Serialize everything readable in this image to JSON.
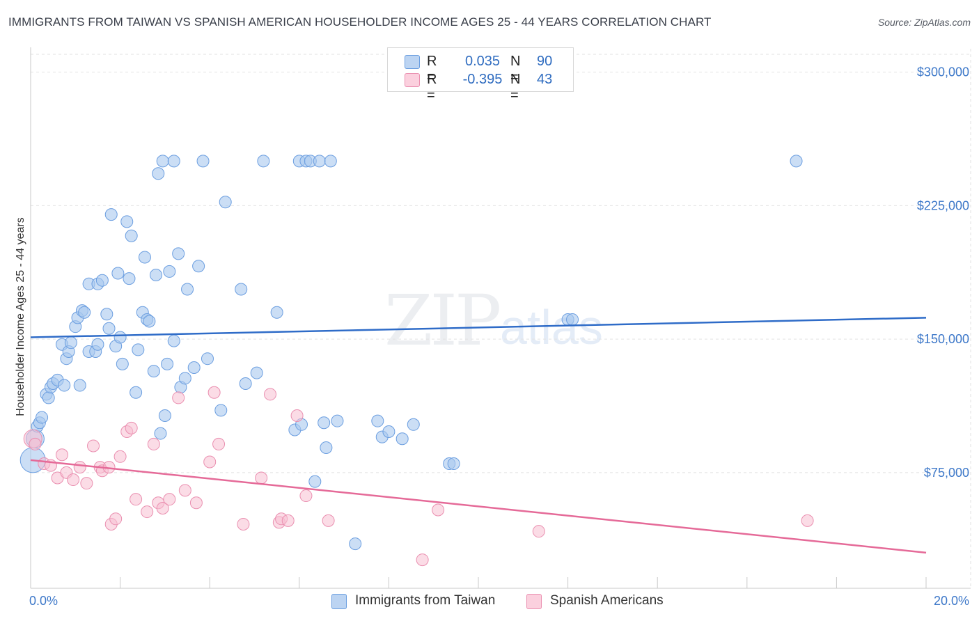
{
  "title": "IMMIGRANTS FROM TAIWAN VS SPANISH AMERICAN HOUSEHOLDER INCOME AGES 25 - 44 YEARS CORRELATION CHART",
  "source": "Source: ZipAtlas.com",
  "watermark": {
    "zip": "ZIP",
    "atlas": "atlas"
  },
  "legend": {
    "rows": [
      {
        "r_label": "R =",
        "r_value": "0.035",
        "n_label": "N =",
        "n_value": "90"
      },
      {
        "r_label": "R =",
        "r_value": "-0.395",
        "n_label": "N =",
        "n_value": "43"
      }
    ]
  },
  "bottom_legend": {
    "taiwan": "Immigrants from Taiwan",
    "spanish": "Spanish Americans"
  },
  "colors": {
    "taiwan_fill": "#a9c8ef",
    "taiwan_stroke": "#6b9ee0",
    "taiwan_line": "#2f6cc8",
    "spanish_fill": "#f7bfd2",
    "spanish_stroke": "#ea8fb0",
    "spanish_line": "#e56a98",
    "tick_text": "#3d78c9",
    "grid": "#e2e2e2"
  },
  "chart_data": {
    "type": "scatter",
    "title": "IMMIGRANTS FROM TAIWAN VS SPANISH AMERICAN HOUSEHOLDER INCOME AGES 25 - 44 YEARS CORRELATION CHART",
    "xlabel": "",
    "ylabel": "Householder Income Ages 25 - 44 years",
    "xlim": [
      0,
      20
    ],
    "ylim": [
      10000,
      310000
    ],
    "x_tick_labels": [
      "0.0%",
      "20.0%"
    ],
    "y_ticks": [
      {
        "value": 75000,
        "label": "$75,000"
      },
      {
        "value": 150000,
        "label": "$150,000"
      },
      {
        "value": 225000,
        "label": "$225,000"
      },
      {
        "value": 300000,
        "label": "$300,000"
      }
    ],
    "series": [
      {
        "name": "Immigrants from Taiwan",
        "R": 0.035,
        "N": 90,
        "trend": {
          "x0": 0,
          "y0": 151000,
          "x1": 20,
          "y1": 162000
        },
        "points": [
          [
            0.05,
            82000
          ],
          [
            0.1,
            94000
          ],
          [
            0.15,
            101000
          ],
          [
            0.2,
            103000
          ],
          [
            0.25,
            106000
          ],
          [
            0.35,
            119000
          ],
          [
            0.4,
            117000
          ],
          [
            0.45,
            123000
          ],
          [
            0.5,
            125000
          ],
          [
            0.6,
            127000
          ],
          [
            0.7,
            147000
          ],
          [
            0.75,
            124000
          ],
          [
            0.8,
            139000
          ],
          [
            0.85,
            143000
          ],
          [
            0.9,
            148000
          ],
          [
            1.0,
            157000
          ],
          [
            1.05,
            162000
          ],
          [
            1.1,
            124000
          ],
          [
            1.15,
            166000
          ],
          [
            1.2,
            165000
          ],
          [
            1.3,
            181000
          ],
          [
            1.3,
            143000
          ],
          [
            1.45,
            143000
          ],
          [
            1.5,
            181000
          ],
          [
            1.5,
            147000
          ],
          [
            1.6,
            183000
          ],
          [
            1.7,
            164000
          ],
          [
            1.75,
            156000
          ],
          [
            1.8,
            220000
          ],
          [
            1.9,
            146000
          ],
          [
            1.95,
            187000
          ],
          [
            2.0,
            151000
          ],
          [
            2.05,
            136000
          ],
          [
            2.15,
            216000
          ],
          [
            2.2,
            184000
          ],
          [
            2.25,
            208000
          ],
          [
            2.35,
            120000
          ],
          [
            2.4,
            144000
          ],
          [
            2.5,
            165000
          ],
          [
            2.55,
            196000
          ],
          [
            2.6,
            161000
          ],
          [
            2.65,
            160000
          ],
          [
            2.75,
            132000
          ],
          [
            2.8,
            186000
          ],
          [
            2.85,
            243000
          ],
          [
            2.9,
            97000
          ],
          [
            2.95,
            250000
          ],
          [
            3.0,
            107000
          ],
          [
            3.05,
            136000
          ],
          [
            3.1,
            188000
          ],
          [
            3.2,
            149000
          ],
          [
            3.2,
            250000
          ],
          [
            3.3,
            198000
          ],
          [
            3.35,
            123000
          ],
          [
            3.45,
            128000
          ],
          [
            3.5,
            178000
          ],
          [
            3.65,
            134000
          ],
          [
            3.75,
            191000
          ],
          [
            3.85,
            250000
          ],
          [
            3.95,
            139000
          ],
          [
            4.25,
            110000
          ],
          [
            4.35,
            227000
          ],
          [
            4.7,
            178000
          ],
          [
            4.8,
            125000
          ],
          [
            5.05,
            131000
          ],
          [
            5.2,
            250000
          ],
          [
            5.5,
            165000
          ],
          [
            5.9,
            99000
          ],
          [
            6.0,
            250000
          ],
          [
            6.05,
            102000
          ],
          [
            6.15,
            250000
          ],
          [
            6.25,
            250000
          ],
          [
            6.35,
            70000
          ],
          [
            6.45,
            250000
          ],
          [
            6.55,
            103000
          ],
          [
            6.6,
            89000
          ],
          [
            6.7,
            250000
          ],
          [
            6.85,
            104000
          ],
          [
            7.25,
            35000
          ],
          [
            7.75,
            104000
          ],
          [
            7.85,
            95000
          ],
          [
            8.0,
            98000
          ],
          [
            8.3,
            94000
          ],
          [
            8.55,
            102000
          ],
          [
            9.35,
            80000
          ],
          [
            9.45,
            80000
          ],
          [
            12.0,
            161000
          ],
          [
            12.1,
            161000
          ],
          [
            17.1,
            250000
          ]
        ]
      },
      {
        "name": "Spanish Americans",
        "R": -0.395,
        "N": 43,
        "trend": {
          "x0": 0,
          "y0": 82000,
          "x1": 20,
          "y1": 30000
        },
        "points": [
          [
            0.05,
            94000
          ],
          [
            0.1,
            91000
          ],
          [
            0.3,
            80000
          ],
          [
            0.45,
            79000
          ],
          [
            0.6,
            72000
          ],
          [
            0.7,
            85000
          ],
          [
            0.8,
            75000
          ],
          [
            0.95,
            71000
          ],
          [
            1.1,
            78000
          ],
          [
            1.25,
            69000
          ],
          [
            1.4,
            90000
          ],
          [
            1.55,
            78000
          ],
          [
            1.6,
            76000
          ],
          [
            1.75,
            78000
          ],
          [
            1.8,
            46000
          ],
          [
            1.9,
            49000
          ],
          [
            2.0,
            84000
          ],
          [
            2.15,
            98000
          ],
          [
            2.25,
            100000
          ],
          [
            2.35,
            60000
          ],
          [
            2.6,
            53000
          ],
          [
            2.75,
            91000
          ],
          [
            2.85,
            58000
          ],
          [
            2.95,
            55000
          ],
          [
            3.1,
            60000
          ],
          [
            3.3,
            117000
          ],
          [
            3.45,
            65000
          ],
          [
            3.7,
            58000
          ],
          [
            4.0,
            81000
          ],
          [
            4.1,
            120000
          ],
          [
            4.2,
            91000
          ],
          [
            4.75,
            46000
          ],
          [
            5.15,
            72000
          ],
          [
            5.35,
            119000
          ],
          [
            5.55,
            47000
          ],
          [
            5.6,
            49000
          ],
          [
            5.75,
            48000
          ],
          [
            5.95,
            107000
          ],
          [
            6.15,
            62000
          ],
          [
            6.65,
            48000
          ],
          [
            8.75,
            26000
          ],
          [
            9.1,
            54000
          ],
          [
            11.35,
            42000
          ],
          [
            17.35,
            48000
          ]
        ]
      }
    ]
  }
}
